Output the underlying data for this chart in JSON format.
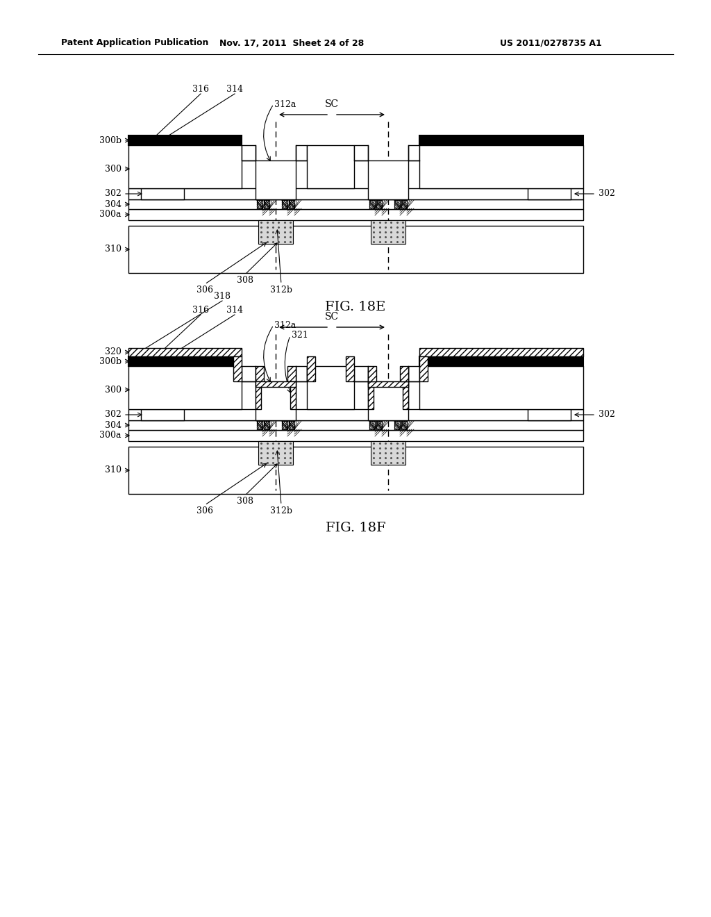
{
  "header_left": "Patent Application Publication",
  "header_mid": "Nov. 17, 2011  Sheet 24 of 28",
  "header_right": "US 2011/0278735 A1",
  "fig_label_E": "FIG. 18E",
  "fig_label_F": "FIG. 18F",
  "bg_color": "#ffffff",
  "line_color": "#000000"
}
